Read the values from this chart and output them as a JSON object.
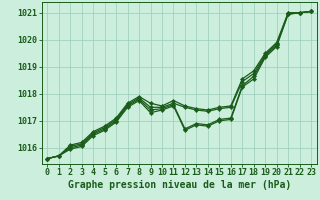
{
  "xlabel": "Graphe pression niveau de la mer (hPa)",
  "xlim": [
    -0.5,
    23.5
  ],
  "ylim": [
    1015.4,
    1021.4
  ],
  "yticks": [
    1016,
    1017,
    1018,
    1019,
    1020,
    1021
  ],
  "xticks": [
    0,
    1,
    2,
    3,
    4,
    5,
    6,
    7,
    8,
    9,
    10,
    11,
    12,
    13,
    14,
    15,
    16,
    17,
    18,
    19,
    20,
    21,
    22,
    23
  ],
  "bg_color": "#cceedd",
  "grid_color": "#99ccbb",
  "line_color": "#1a5c1a",
  "marker": "D",
  "marker_size": 2.2,
  "line_width": 0.9,
  "series": [
    [
      1015.6,
      1015.7,
      1016.1,
      1016.2,
      1016.6,
      1016.8,
      1017.1,
      1017.65,
      1017.9,
      1017.65,
      1017.55,
      1017.75,
      1017.55,
      1017.45,
      1017.4,
      1017.5,
      1017.55,
      1018.55,
      1018.85,
      1019.5,
      1019.9,
      1021.0,
      1021.0,
      1021.05
    ],
    [
      1015.6,
      1015.7,
      1016.05,
      1016.15,
      1016.55,
      1016.75,
      1017.05,
      1017.6,
      1017.85,
      1017.5,
      1017.5,
      1017.65,
      1017.5,
      1017.4,
      1017.35,
      1017.45,
      1017.5,
      1018.45,
      1018.75,
      1019.45,
      1019.85,
      1020.95,
      1021.0,
      1021.05
    ],
    [
      1015.6,
      1015.7,
      1016.0,
      1016.1,
      1016.5,
      1016.7,
      1017.0,
      1017.55,
      1017.8,
      1017.4,
      1017.45,
      1017.6,
      1016.7,
      1016.9,
      1016.85,
      1017.05,
      1017.1,
      1018.3,
      1018.65,
      1019.4,
      1019.8,
      1021.0,
      1021.0,
      1021.05
    ],
    [
      1015.6,
      1015.7,
      1015.95,
      1016.05,
      1016.45,
      1016.65,
      1016.95,
      1017.5,
      1017.75,
      1017.3,
      1017.4,
      1017.55,
      1016.65,
      1016.85,
      1016.8,
      1017.0,
      1017.05,
      1018.25,
      1018.55,
      1019.35,
      1019.75,
      1020.95,
      1021.0,
      1021.05
    ]
  ],
  "font_family": "monospace",
  "font_size_ticks": 6.0,
  "font_size_xlabel": 7.0
}
